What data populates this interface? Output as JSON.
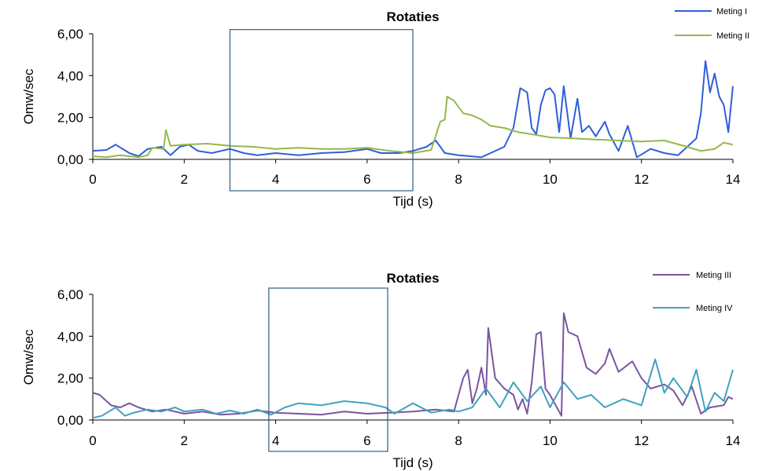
{
  "chart_data": [
    {
      "type": "line",
      "title": "Rotaties",
      "xlabel": "Tijd (s)",
      "ylabel": "Omw/sec",
      "xlim": [
        0,
        14
      ],
      "ylim": [
        0,
        6
      ],
      "x_ticks": [
        "0",
        "2",
        "4",
        "6",
        "8",
        "10",
        "12",
        "14"
      ],
      "y_ticks": [
        "0,00",
        "2,00",
        "4,00",
        "6,00"
      ],
      "highlight_box": {
        "x_range": [
          3,
          7
        ],
        "y_range": [
          -1.5,
          6.2
        ]
      },
      "legend_position": "top-right",
      "series": [
        {
          "name": "Meting I",
          "color": "#2f5fd8",
          "points": [
            [
              0,
              0.4
            ],
            [
              0.3,
              0.45
            ],
            [
              0.5,
              0.7
            ],
            [
              0.8,
              0.3
            ],
            [
              1.0,
              0.15
            ],
            [
              1.2,
              0.5
            ],
            [
              1.5,
              0.6
            ],
            [
              1.7,
              0.2
            ],
            [
              1.9,
              0.6
            ],
            [
              2.1,
              0.7
            ],
            [
              2.3,
              0.4
            ],
            [
              2.6,
              0.3
            ],
            [
              3.0,
              0.5
            ],
            [
              3.3,
              0.3
            ],
            [
              3.6,
              0.2
            ],
            [
              4.0,
              0.3
            ],
            [
              4.5,
              0.2
            ],
            [
              5.0,
              0.3
            ],
            [
              5.5,
              0.35
            ],
            [
              6.0,
              0.5
            ],
            [
              6.3,
              0.3
            ],
            [
              6.7,
              0.3
            ],
            [
              7.0,
              0.4
            ],
            [
              7.3,
              0.6
            ],
            [
              7.5,
              0.9
            ],
            [
              7.7,
              0.3
            ],
            [
              8.0,
              0.2
            ],
            [
              8.5,
              0.1
            ],
            [
              8.7,
              0.3
            ],
            [
              9.0,
              0.6
            ],
            [
              9.2,
              1.5
            ],
            [
              9.35,
              3.4
            ],
            [
              9.5,
              3.2
            ],
            [
              9.6,
              1.5
            ],
            [
              9.7,
              1.2
            ],
            [
              9.8,
              2.6
            ],
            [
              9.9,
              3.3
            ],
            [
              10.0,
              3.4
            ],
            [
              10.1,
              3.1
            ],
            [
              10.2,
              1.3
            ],
            [
              10.3,
              3.5
            ],
            [
              10.45,
              1.0
            ],
            [
              10.6,
              2.9
            ],
            [
              10.7,
              1.3
            ],
            [
              10.85,
              1.6
            ],
            [
              11.0,
              1.1
            ],
            [
              11.2,
              1.8
            ],
            [
              11.3,
              1.2
            ],
            [
              11.5,
              0.4
            ],
            [
              11.7,
              1.6
            ],
            [
              11.9,
              0.1
            ],
            [
              12.2,
              0.5
            ],
            [
              12.5,
              0.3
            ],
            [
              12.8,
              0.2
            ],
            [
              13.0,
              0.6
            ],
            [
              13.2,
              1.0
            ],
            [
              13.3,
              2.2
            ],
            [
              13.4,
              4.7
            ],
            [
              13.5,
              3.2
            ],
            [
              13.6,
              4.1
            ],
            [
              13.7,
              3.0
            ],
            [
              13.8,
              2.6
            ],
            [
              13.9,
              1.3
            ],
            [
              14.0,
              3.5
            ]
          ]
        },
        {
          "name": "Meting II",
          "color": "#94b84a",
          "points": [
            [
              0,
              0.15
            ],
            [
              0.3,
              0.1
            ],
            [
              0.6,
              0.2
            ],
            [
              1.0,
              0.1
            ],
            [
              1.2,
              0.2
            ],
            [
              1.3,
              0.55
            ],
            [
              1.55,
              0.5
            ],
            [
              1.6,
              1.4
            ],
            [
              1.7,
              0.65
            ],
            [
              2.0,
              0.7
            ],
            [
              2.5,
              0.75
            ],
            [
              3.0,
              0.65
            ],
            [
              3.5,
              0.6
            ],
            [
              4.0,
              0.5
            ],
            [
              4.5,
              0.55
            ],
            [
              5.0,
              0.5
            ],
            [
              5.5,
              0.5
            ],
            [
              6.0,
              0.55
            ],
            [
              6.5,
              0.4
            ],
            [
              7.0,
              0.3
            ],
            [
              7.4,
              0.45
            ],
            [
              7.6,
              1.8
            ],
            [
              7.7,
              1.9
            ],
            [
              7.75,
              3.0
            ],
            [
              7.9,
              2.8
            ],
            [
              8.1,
              2.2
            ],
            [
              8.3,
              2.1
            ],
            [
              8.5,
              1.9
            ],
            [
              8.7,
              1.6
            ],
            [
              9.0,
              1.5
            ],
            [
              9.3,
              1.3
            ],
            [
              9.6,
              1.2
            ],
            [
              10.0,
              1.05
            ],
            [
              10.5,
              1.0
            ],
            [
              11.0,
              0.95
            ],
            [
              11.5,
              0.9
            ],
            [
              12.0,
              0.85
            ],
            [
              12.5,
              0.9
            ],
            [
              13.0,
              0.6
            ],
            [
              13.3,
              0.4
            ],
            [
              13.6,
              0.5
            ],
            [
              13.8,
              0.8
            ],
            [
              14.0,
              0.7
            ]
          ]
        }
      ]
    },
    {
      "type": "line",
      "title": "Rotaties",
      "xlabel": "Tijd (s)",
      "ylabel": "Omw/sec",
      "xlim": [
        0,
        14
      ],
      "ylim": [
        0,
        6
      ],
      "x_ticks": [
        "0",
        "2",
        "4",
        "6",
        "8",
        "10",
        "12",
        "14"
      ],
      "y_ticks": [
        "0,00",
        "2,00",
        "4,00",
        "6,00"
      ],
      "highlight_box": {
        "x_range": [
          3.85,
          6.45
        ],
        "y_range": [
          -1.5,
          6.3
        ]
      },
      "legend_position": "top-right",
      "series": [
        {
          "name": "Meting III",
          "color": "#7b55a0",
          "points": [
            [
              0,
              1.3
            ],
            [
              0.15,
              1.2
            ],
            [
              0.4,
              0.7
            ],
            [
              0.6,
              0.6
            ],
            [
              0.8,
              0.8
            ],
            [
              1.0,
              0.6
            ],
            [
              1.3,
              0.4
            ],
            [
              1.6,
              0.5
            ],
            [
              2.0,
              0.3
            ],
            [
              2.4,
              0.4
            ],
            [
              2.8,
              0.25
            ],
            [
              3.2,
              0.3
            ],
            [
              3.6,
              0.45
            ],
            [
              4.0,
              0.35
            ],
            [
              4.5,
              0.3
            ],
            [
              5.0,
              0.25
            ],
            [
              5.5,
              0.4
            ],
            [
              6.0,
              0.3
            ],
            [
              6.5,
              0.35
            ],
            [
              7.0,
              0.4
            ],
            [
              7.5,
              0.5
            ],
            [
              7.9,
              0.4
            ],
            [
              8.1,
              2.0
            ],
            [
              8.2,
              2.4
            ],
            [
              8.3,
              0.8
            ],
            [
              8.4,
              1.5
            ],
            [
              8.5,
              2.5
            ],
            [
              8.6,
              1.2
            ],
            [
              8.65,
              4.4
            ],
            [
              8.8,
              2.0
            ],
            [
              9.0,
              1.5
            ],
            [
              9.2,
              1.2
            ],
            [
              9.3,
              0.5
            ],
            [
              9.4,
              1.0
            ],
            [
              9.5,
              0.3
            ],
            [
              9.6,
              1.8
            ],
            [
              9.7,
              4.1
            ],
            [
              9.8,
              4.2
            ],
            [
              9.9,
              1.5
            ],
            [
              10.0,
              1.2
            ],
            [
              10.1,
              0.8
            ],
            [
              10.25,
              0.2
            ],
            [
              10.3,
              5.1
            ],
            [
              10.4,
              4.2
            ],
            [
              10.6,
              4.0
            ],
            [
              10.8,
              2.5
            ],
            [
              11.0,
              2.2
            ],
            [
              11.2,
              2.7
            ],
            [
              11.3,
              3.4
            ],
            [
              11.5,
              2.3
            ],
            [
              11.8,
              2.8
            ],
            [
              12.0,
              2.0
            ],
            [
              12.2,
              1.5
            ],
            [
              12.5,
              1.7
            ],
            [
              12.7,
              1.4
            ],
            [
              12.9,
              0.7
            ],
            [
              13.1,
              1.6
            ],
            [
              13.3,
              0.3
            ],
            [
              13.5,
              0.6
            ],
            [
              13.8,
              0.7
            ],
            [
              13.9,
              1.1
            ],
            [
              14.0,
              1.0
            ]
          ]
        },
        {
          "name": "Meting IV",
          "color": "#3fa3bd",
          "points": [
            [
              0,
              0.1
            ],
            [
              0.2,
              0.2
            ],
            [
              0.5,
              0.6
            ],
            [
              0.7,
              0.2
            ],
            [
              0.9,
              0.35
            ],
            [
              1.2,
              0.5
            ],
            [
              1.5,
              0.4
            ],
            [
              1.8,
              0.6
            ],
            [
              2.0,
              0.4
            ],
            [
              2.4,
              0.5
            ],
            [
              2.7,
              0.3
            ],
            [
              3.0,
              0.45
            ],
            [
              3.3,
              0.3
            ],
            [
              3.6,
              0.5
            ],
            [
              3.9,
              0.25
            ],
            [
              4.2,
              0.6
            ],
            [
              4.5,
              0.8
            ],
            [
              5.0,
              0.7
            ],
            [
              5.5,
              0.9
            ],
            [
              6.0,
              0.8
            ],
            [
              6.4,
              0.6
            ],
            [
              6.6,
              0.3
            ],
            [
              7.0,
              0.8
            ],
            [
              7.4,
              0.35
            ],
            [
              7.8,
              0.5
            ],
            [
              8.0,
              0.4
            ],
            [
              8.3,
              0.6
            ],
            [
              8.6,
              1.5
            ],
            [
              8.9,
              0.6
            ],
            [
              9.2,
              1.8
            ],
            [
              9.5,
              0.9
            ],
            [
              9.8,
              1.6
            ],
            [
              10.0,
              0.6
            ],
            [
              10.3,
              1.8
            ],
            [
              10.6,
              1.0
            ],
            [
              10.9,
              1.2
            ],
            [
              11.2,
              0.6
            ],
            [
              11.6,
              1.0
            ],
            [
              12.0,
              0.7
            ],
            [
              12.3,
              2.9
            ],
            [
              12.5,
              1.3
            ],
            [
              12.7,
              2.0
            ],
            [
              13.0,
              1.1
            ],
            [
              13.2,
              2.4
            ],
            [
              13.4,
              0.4
            ],
            [
              13.6,
              1.3
            ],
            [
              13.8,
              0.9
            ],
            [
              14.0,
              2.4
            ]
          ]
        }
      ]
    }
  ]
}
